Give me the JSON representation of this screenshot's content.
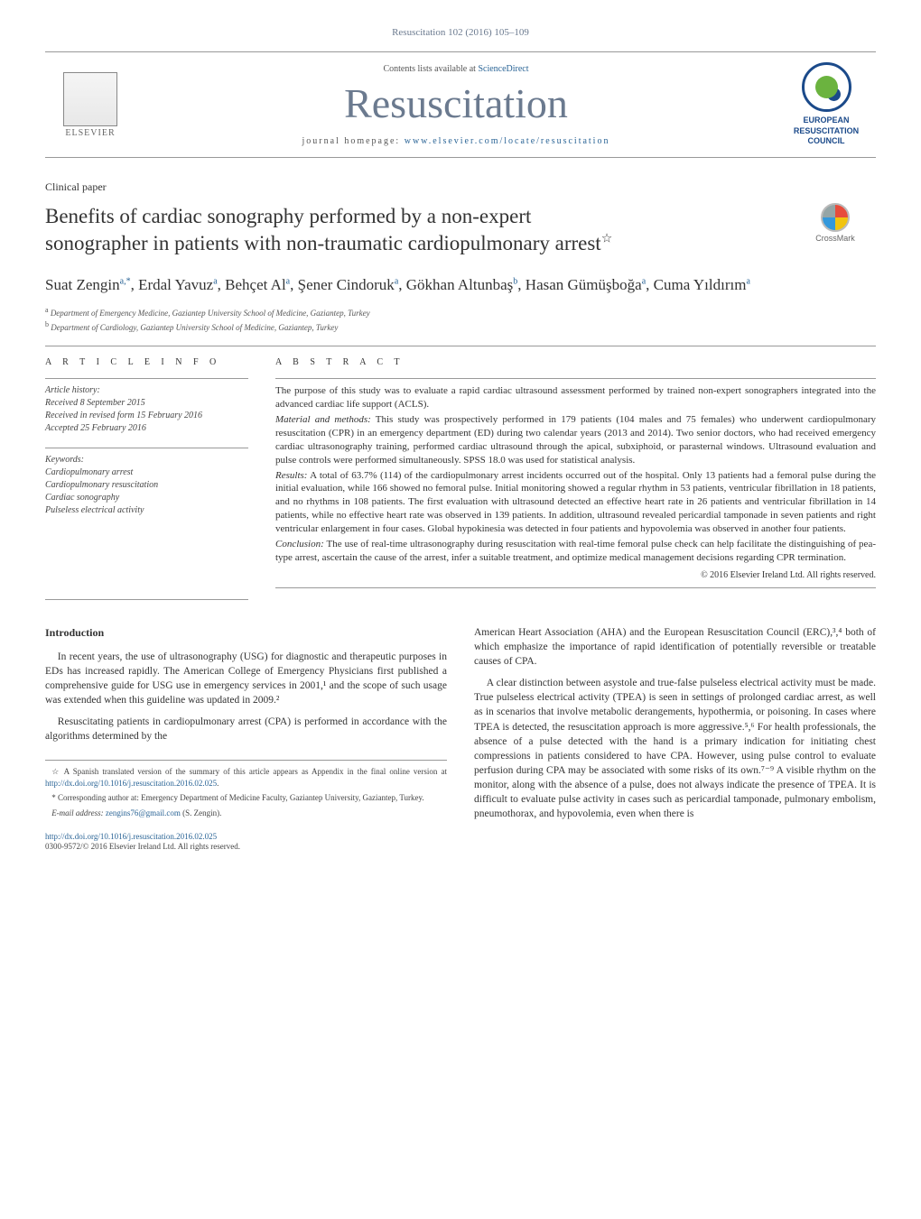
{
  "journal_ref": "Resuscitation 102 (2016) 105–109",
  "header": {
    "contents_text": "Contents lists available at ",
    "contents_link": "ScienceDirect",
    "journal_title": "Resuscitation",
    "homepage_label": "journal homepage: ",
    "homepage_link": "www.elsevier.com/locate/resuscitation",
    "elsevier_label": "ELSEVIER",
    "erc_line1": "EUROPEAN",
    "erc_line2": "RESUSCITATION",
    "erc_line3": "COUNCIL"
  },
  "section_label": "Clinical paper",
  "article_title_line1": "Benefits of cardiac sonography performed by a non-expert",
  "article_title_line2": "sonographer in patients with non-traumatic cardiopulmonary arrest",
  "crossmark_label": "CrossMark",
  "authors_html": "Suat Zengin<sup>a,*</sup>, Erdal Yavuz<sup>a</sup>, Behçet Al<sup>a</sup>, Şener Cindoruk<sup>a</sup>, Gökhan Altunbaş<sup>b</sup>, Hasan Gümüşboğa<sup>a</sup>, Cuma Yıldırım<sup>a</sup>",
  "affiliations": {
    "a": "Department of Emergency Medicine, Gaziantep University School of Medicine, Gaziantep, Turkey",
    "b": "Department of Cardiology, Gaziantep University School of Medicine, Gaziantep, Turkey"
  },
  "article_info": {
    "heading": "A R T I C L E   I N F O",
    "history_heading": "Article history:",
    "history_lines": [
      "Received 8 September 2015",
      "Received in revised form 15 February 2016",
      "Accepted 25 February 2016"
    ],
    "keywords_heading": "Keywords:",
    "keywords": [
      "Cardiopulmonary arrest",
      "Cardiopulmonary resuscitation",
      "Cardiac sonography",
      "Pulseless electrical activity"
    ]
  },
  "abstract": {
    "heading": "A B S T R A C T",
    "intro": "The purpose of this study was to evaluate a rapid cardiac ultrasound assessment performed by trained non-expert sonographers integrated into the advanced cardiac life support (ACLS).",
    "methods_label": "Material and methods:",
    "methods": " This study was prospectively performed in 179 patients (104 males and 75 females) who underwent cardiopulmonary resuscitation (CPR) in an emergency department (ED) during two calendar years (2013 and 2014). Two senior doctors, who had received emergency cardiac ultrasonography training, performed cardiac ultrasound through the apical, subxiphoid, or parasternal windows. Ultrasound evaluation and pulse controls were performed simultaneously. SPSS 18.0 was used for statistical analysis.",
    "results_label": "Results:",
    "results": " A total of 63.7% (114) of the cardiopulmonary arrest incidents occurred out of the hospital. Only 13 patients had a femoral pulse during the initial evaluation, while 166 showed no femoral pulse. Initial monitoring showed a regular rhythm in 53 patients, ventricular fibrillation in 18 patients, and no rhythms in 108 patients. The first evaluation with ultrasound detected an effective heart rate in 26 patients and ventricular fibrillation in 14 patients, while no effective heart rate was observed in 139 patients. In addition, ultrasound revealed pericardial tamponade in seven patients and right ventricular enlargement in four cases. Global hypokinesia was detected in four patients and hypovolemia was observed in another four patients.",
    "conclusion_label": "Conclusion:",
    "conclusion": " The use of real-time ultrasonography during resuscitation with real-time femoral pulse check can help facilitate the distinguishing of pea-type arrest, ascertain the cause of the arrest, infer a suitable treatment, and optimize medical management decisions regarding CPR termination.",
    "copyright": "© 2016 Elsevier Ireland Ltd. All rights reserved."
  },
  "body": {
    "intro_heading": "Introduction",
    "left_p1": "In recent years, the use of ultrasonography (USG) for diagnostic and therapeutic purposes in EDs has increased rapidly. The American College of Emergency Physicians first published a comprehensive guide for USG use in emergency services in 2001,¹ and the scope of such usage was extended when this guideline was updated in 2009.²",
    "left_p2": "Resuscitating patients in cardiopulmonary arrest (CPA) is performed in accordance with the algorithms determined by the",
    "right_p1": "American Heart Association (AHA) and the European Resuscitation Council (ERC),³,⁴ both of which emphasize the importance of rapid identification of potentially reversible or treatable causes of CPA.",
    "right_p2": "A clear distinction between asystole and true-false pulseless electrical activity must be made. True pulseless electrical activity (TPEA) is seen in settings of prolonged cardiac arrest, as well as in scenarios that involve metabolic derangements, hypothermia, or poisoning. In cases where TPEA is detected, the resuscitation approach is more aggressive.⁵,⁶ For health professionals, the absence of a pulse detected with the hand is a primary indication for initiating chest compressions in patients considered to have CPA. However, using pulse control to evaluate perfusion during CPA may be associated with some risks of its own.⁷⁻⁹ A visible rhythm on the monitor, along with the absence of a pulse, does not always indicate the presence of TPEA. It is difficult to evaluate pulse activity in cases such as pericardial tamponade, pulmonary embolism, pneumothorax, and hypovolemia, even when there is"
  },
  "footnotes": {
    "star": "A Spanish translated version of the summary of this article appears as Appendix in the final online version at ",
    "star_link": "http://dx.doi.org/10.1016/j.resuscitation.2016.02.025",
    "corr": "Corresponding author at: Emergency Department of Medicine Faculty, Gaziantep University, Gaziantep, Turkey.",
    "email_label": "E-mail address: ",
    "email": "zengins76@gmail.com",
    "email_who": " (S. Zengin)."
  },
  "doi": {
    "link": "http://dx.doi.org/10.1016/j.resuscitation.2016.02.025",
    "issn_line": "0300-9572/© 2016 Elsevier Ireland Ltd. All rights reserved."
  },
  "colors": {
    "link": "#2a6496",
    "gray_title": "#6b7a8f",
    "erc_blue": "#1b4a8a",
    "erc_green": "#6bb33f"
  }
}
